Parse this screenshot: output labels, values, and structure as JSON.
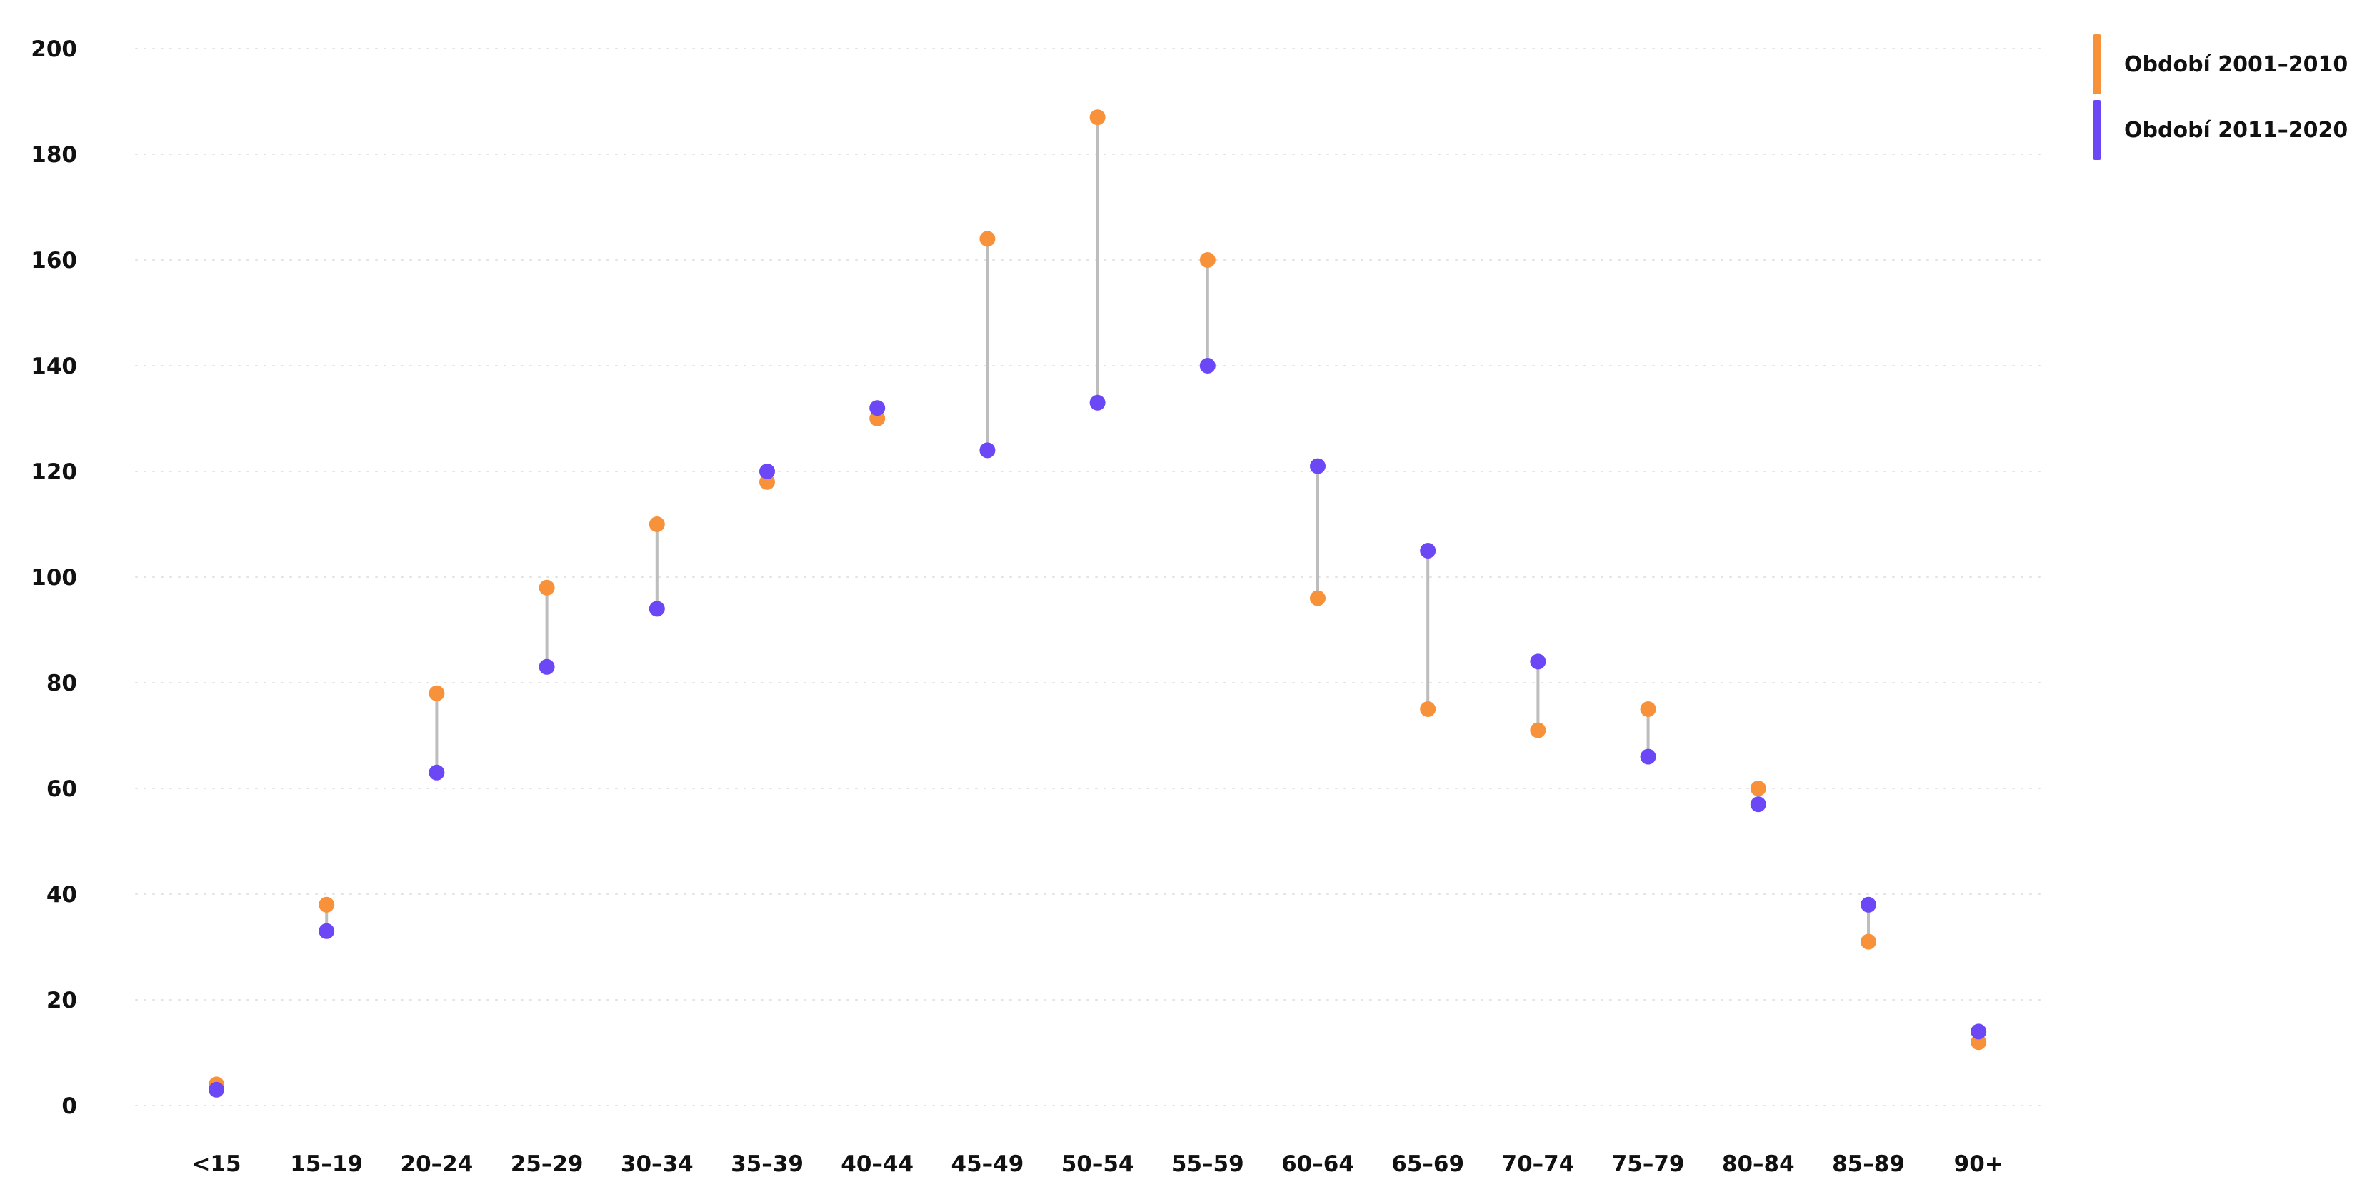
{
  "chart_data": {
    "type": "dumbbell",
    "categories": [
      "<15",
      "15–19",
      "20–24",
      "25–29",
      "30–34",
      "35–39",
      "40–44",
      "45–49",
      "50–54",
      "55–59",
      "60–64",
      "65–69",
      "70–74",
      "75–79",
      "80–84",
      "85–89",
      "90+"
    ],
    "series": [
      {
        "name": "Období 2001–2010",
        "color": "#f7923a",
        "values": [
          4,
          38,
          78,
          98,
          110,
          118,
          130,
          164,
          187,
          160,
          96,
          75,
          71,
          75,
          60,
          31,
          12
        ]
      },
      {
        "name": "Období 2011–2020",
        "color": "#6c47f5",
        "values": [
          3,
          33,
          63,
          83,
          94,
          120,
          132,
          124,
          133,
          140,
          121,
          105,
          84,
          66,
          57,
          38,
          14
        ]
      }
    ],
    "ylim": [
      0,
      200
    ],
    "yticks": [
      "0",
      "20",
      "40",
      "60",
      "80",
      "100",
      "120",
      "140",
      "160",
      "180",
      "200"
    ],
    "grid": true,
    "legend_position": "top-right",
    "connector_color": "#bdbdbd"
  },
  "legend": {
    "items": [
      {
        "label": "Období 2001–2010",
        "color": "#f7923a"
      },
      {
        "label": "Období 2011–2020",
        "color": "#6c47f5"
      }
    ]
  }
}
